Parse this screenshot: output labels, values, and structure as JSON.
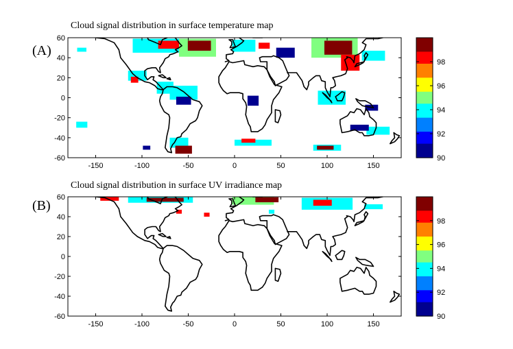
{
  "colors": {
    "land_line": "#000000",
    "background": "#ffffff",
    "colormap": [
      "#00008f",
      "#0000ff",
      "#0080ff",
      "#00ffff",
      "#80ff80",
      "#ffff00",
      "#ff8000",
      "#ff0000",
      "#800000"
    ]
  },
  "panels": [
    {
      "letter": "(A)",
      "title": "Cloud signal distribution in surface temperature map",
      "x_ticks": [
        "-150",
        "-100",
        "-50",
        "0",
        "50",
        "100",
        "150"
      ],
      "y_ticks": [
        "60",
        "40",
        "20",
        "0",
        "-20",
        "-40",
        "-60"
      ],
      "colorbar": {
        "ticks": [
          "98",
          "96",
          "94",
          "92",
          "90"
        ],
        "range": [
          90,
          100
        ]
      },
      "cloud_regions": [
        {
          "lon": -165,
          "lat": 48,
          "w": 10,
          "h": 4,
          "value": 94
        },
        {
          "lon": -80,
          "lat": 52,
          "w": 60,
          "h": 14,
          "value": 94
        },
        {
          "lon": -70,
          "lat": 53,
          "w": 25,
          "h": 8,
          "value": 98
        },
        {
          "lon": -40,
          "lat": 50,
          "w": 40,
          "h": 18,
          "value": 95
        },
        {
          "lon": -38,
          "lat": 52,
          "w": 25,
          "h": 10,
          "value": 99
        },
        {
          "lon": 10,
          "lat": 52,
          "w": 25,
          "h": 12,
          "value": 94
        },
        {
          "lon": 32,
          "lat": 52,
          "w": 12,
          "h": 6,
          "value": 98
        },
        {
          "lon": 55,
          "lat": 45,
          "w": 20,
          "h": 10,
          "value": 91
        },
        {
          "lon": 108,
          "lat": 50,
          "w": 50,
          "h": 20,
          "value": 95
        },
        {
          "lon": 112,
          "lat": 50,
          "w": 30,
          "h": 14,
          "value": 99
        },
        {
          "lon": 125,
          "lat": 35,
          "w": 20,
          "h": 16,
          "value": 98
        },
        {
          "lon": 150,
          "lat": 42,
          "w": 25,
          "h": 10,
          "value": 94
        },
        {
          "lon": -105,
          "lat": 22,
          "w": 20,
          "h": 10,
          "value": 94
        },
        {
          "lon": -108,
          "lat": 18,
          "w": 8,
          "h": 6,
          "value": 98
        },
        {
          "lon": -75,
          "lat": 10,
          "w": 18,
          "h": 12,
          "value": 94
        },
        {
          "lon": -55,
          "lat": 5,
          "w": 30,
          "h": 14,
          "value": 94
        },
        {
          "lon": -55,
          "lat": -3,
          "w": 16,
          "h": 8,
          "value": 91
        },
        {
          "lon": 20,
          "lat": -3,
          "w": 12,
          "h": 10,
          "value": 91
        },
        {
          "lon": 105,
          "lat": 0,
          "w": 30,
          "h": 14,
          "value": 94
        },
        {
          "lon": 148,
          "lat": -10,
          "w": 14,
          "h": 6,
          "value": 91
        },
        {
          "lon": -165,
          "lat": -27,
          "w": 12,
          "h": 6,
          "value": 94
        },
        {
          "lon": 155,
          "lat": -33,
          "w": 25,
          "h": 8,
          "value": 94
        },
        {
          "lon": 135,
          "lat": -30,
          "w": 20,
          "h": 6,
          "value": 91
        },
        {
          "lon": -60,
          "lat": -45,
          "w": 20,
          "h": 10,
          "value": 94
        },
        {
          "lon": -55,
          "lat": -52,
          "w": 18,
          "h": 8,
          "value": 99
        },
        {
          "lon": -95,
          "lat": -50,
          "w": 8,
          "h": 4,
          "value": 91
        },
        {
          "lon": 20,
          "lat": -45,
          "w": 40,
          "h": 6,
          "value": 94
        },
        {
          "lon": 15,
          "lat": -43,
          "w": 15,
          "h": 4,
          "value": 98
        },
        {
          "lon": 100,
          "lat": -50,
          "w": 30,
          "h": 6,
          "value": 94
        },
        {
          "lon": 98,
          "lat": -50,
          "w": 18,
          "h": 4,
          "value": 99
        }
      ]
    },
    {
      "letter": "(B)",
      "title": "Cloud signal distribution in surface UV irradiance map",
      "x_ticks": [
        "-150",
        "-100",
        "-50",
        "0",
        "50",
        "100",
        "150"
      ],
      "y_ticks": [
        "60",
        "40",
        "20",
        "0",
        "-20",
        "-40",
        "-60"
      ],
      "colorbar": {
        "ticks": [
          "98",
          "96",
          "94",
          "92",
          "90"
        ],
        "range": [
          90,
          100
        ]
      },
      "cloud_regions": [
        {
          "lon": -80,
          "lat": 57,
          "w": 70,
          "h": 6,
          "value": 94
        },
        {
          "lon": -75,
          "lat": 57,
          "w": 40,
          "h": 4,
          "value": 99
        },
        {
          "lon": -135,
          "lat": 58,
          "w": 20,
          "h": 4,
          "value": 98
        },
        {
          "lon": 20,
          "lat": 56,
          "w": 45,
          "h": 8,
          "value": 95
        },
        {
          "lon": 35,
          "lat": 57,
          "w": 25,
          "h": 5,
          "value": 99
        },
        {
          "lon": 100,
          "lat": 53,
          "w": 55,
          "h": 12,
          "value": 94
        },
        {
          "lon": 95,
          "lat": 54,
          "w": 20,
          "h": 6,
          "value": 98
        },
        {
          "lon": 150,
          "lat": 50,
          "w": 20,
          "h": 5,
          "value": 94
        },
        {
          "lon": -60,
          "lat": 45,
          "w": 6,
          "h": 4,
          "value": 98
        },
        {
          "lon": -30,
          "lat": 42,
          "w": 6,
          "h": 4,
          "value": 98
        },
        {
          "lon": 40,
          "lat": 45,
          "w": 6,
          "h": 4,
          "value": 94
        }
      ]
    }
  ]
}
